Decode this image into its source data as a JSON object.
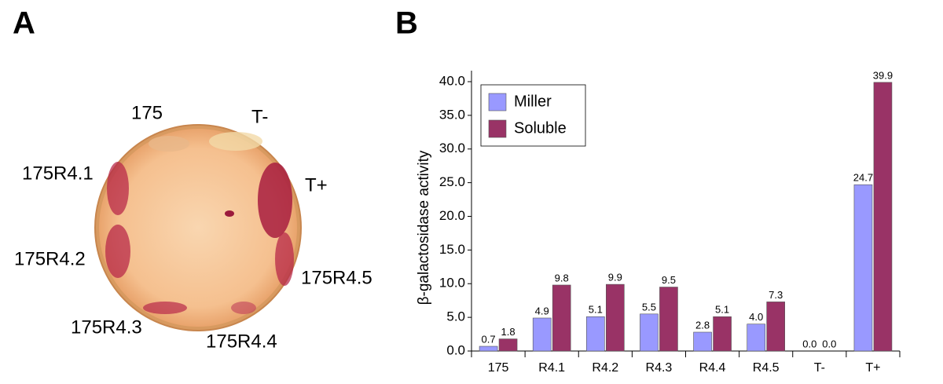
{
  "panels": {
    "a": "A",
    "b": "B"
  },
  "plate": {
    "labels": [
      "175",
      "T-",
      "175R4.1",
      "T+",
      "175R4.2",
      "175R4.5",
      "175R4.3",
      "175R4.4"
    ]
  },
  "chart_data": {
    "type": "bar",
    "y_label": "β-galactosidase activity",
    "categories": [
      "175",
      "R4.1",
      "R4.2",
      "R4.3",
      "R4.4",
      "R4.5",
      "T-",
      "T+"
    ],
    "series": [
      {
        "name": "Miller",
        "color": "#9999ff",
        "values": [
          0.7,
          4.9,
          5.1,
          5.5,
          2.8,
          4.0,
          0.0,
          24.7
        ],
        "value_labels": [
          "0.7",
          "4.9",
          "5.1",
          "5.5",
          "2.8",
          "4.0",
          "0.0",
          "24.7"
        ]
      },
      {
        "name": "Soluble",
        "color": "#993366",
        "values": [
          1.8,
          9.8,
          9.9,
          9.5,
          5.1,
          7.3,
          0.0,
          39.9
        ],
        "value_labels": [
          "1.8",
          "9.8",
          "9.9",
          "9.5",
          "5.1",
          "7.3",
          "0.0",
          "39.9"
        ]
      }
    ],
    "ylim": [
      0,
      40
    ],
    "yticks": [
      {
        "value": 0,
        "label": "0.0"
      },
      {
        "value": 5,
        "label": "5.0"
      },
      {
        "value": 10,
        "label": "10.0"
      },
      {
        "value": 15,
        "label": "15.0"
      },
      {
        "value": 20,
        "label": "20.0"
      },
      {
        "value": 25,
        "label": "25.0"
      },
      {
        "value": 30,
        "label": "30.0"
      },
      {
        "value": 35,
        "label": "35.0"
      },
      {
        "value": 40,
        "label": "40.0"
      }
    ],
    "legend": "top-left"
  }
}
